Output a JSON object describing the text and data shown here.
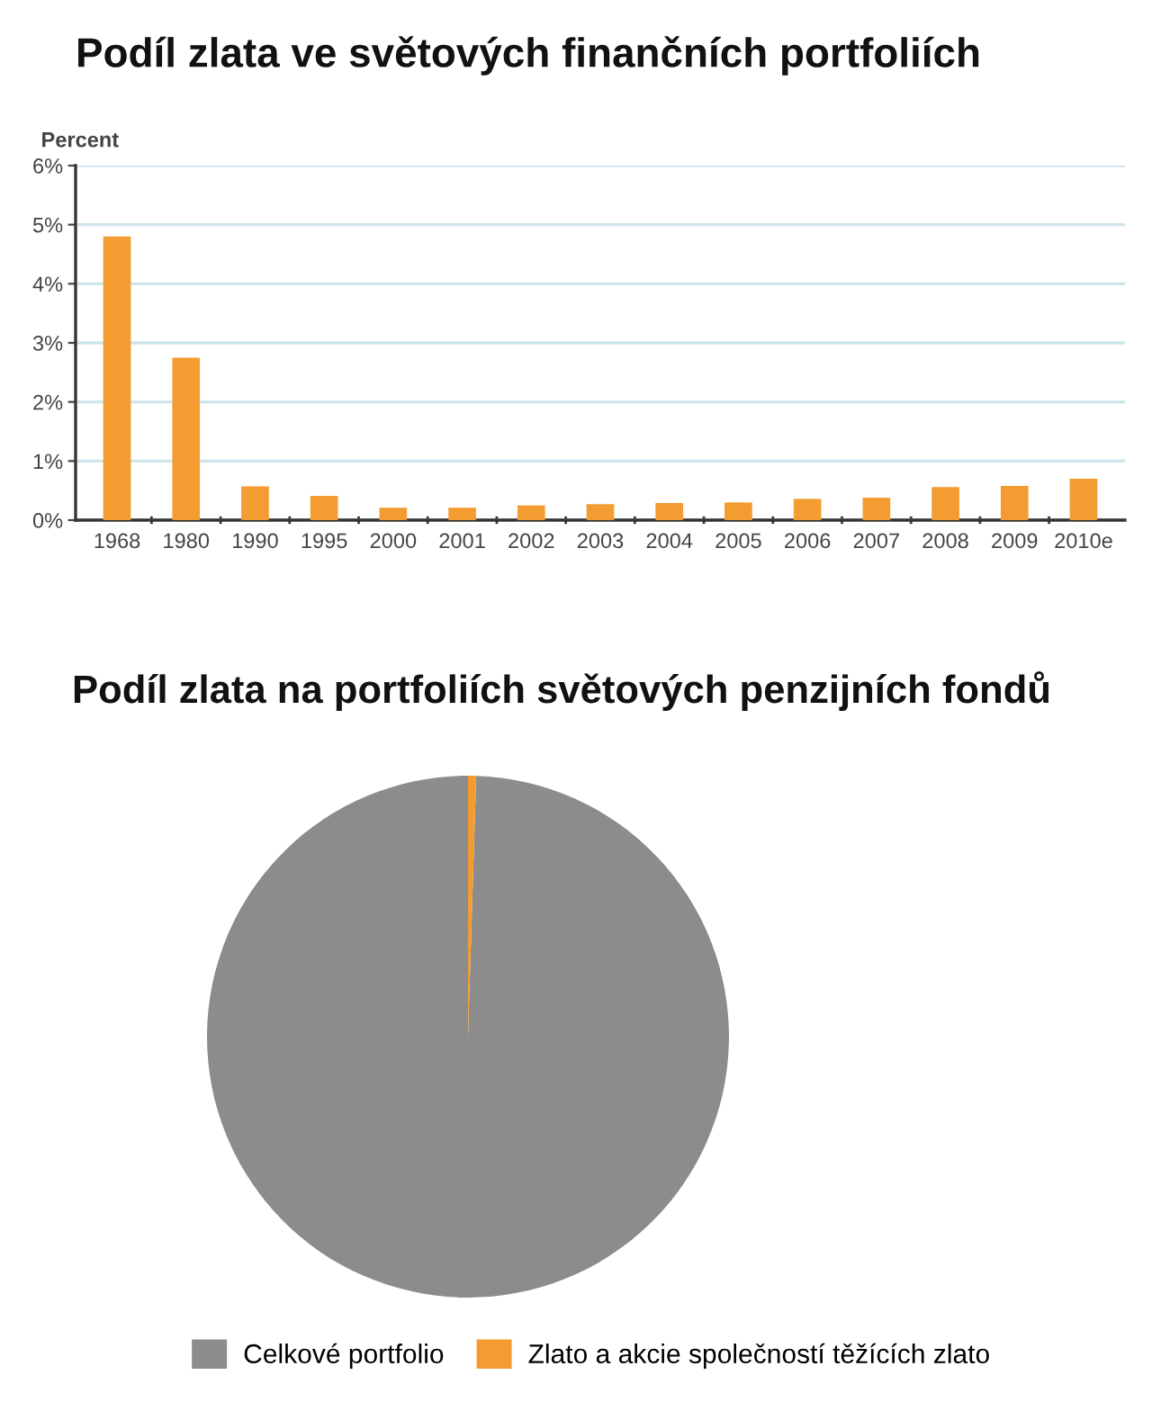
{
  "chart_data": [
    {
      "type": "bar",
      "title": "Podíl zlata ve světových finančních portfoliích",
      "ylabel": "Percent",
      "categories": [
        "1968",
        "1980",
        "1990",
        "1995",
        "2000",
        "2001",
        "2002",
        "2003",
        "2004",
        "2005",
        "2006",
        "2007",
        "2008",
        "2009",
        "2010e"
      ],
      "values": [
        4.8,
        2.75,
        0.57,
        0.41,
        0.21,
        0.21,
        0.25,
        0.27,
        0.29,
        0.3,
        0.36,
        0.38,
        0.56,
        0.58,
        0.7
      ],
      "color": "#f39c31",
      "ylim": [
        0,
        6
      ],
      "yticks": [
        {
          "value": 0,
          "label": "0%"
        },
        {
          "value": 1,
          "label": "1%"
        },
        {
          "value": 2,
          "label": "2%"
        },
        {
          "value": 3,
          "label": "3%"
        },
        {
          "value": 4,
          "label": "4%"
        },
        {
          "value": 5,
          "label": "5%"
        },
        {
          "value": 6,
          "label": "6%"
        }
      ],
      "grid": "y"
    },
    {
      "type": "pie",
      "title": "Podíl zlata na portfoliích světových penzijních fondů",
      "categories": [
        "Celkové portfolio",
        "Zlato a akcie společností těžících zlato"
      ],
      "values": [
        99.5,
        0.5
      ],
      "colors": [
        "#8c8c8c",
        "#f39c31"
      ],
      "legend": "bottom"
    }
  ]
}
